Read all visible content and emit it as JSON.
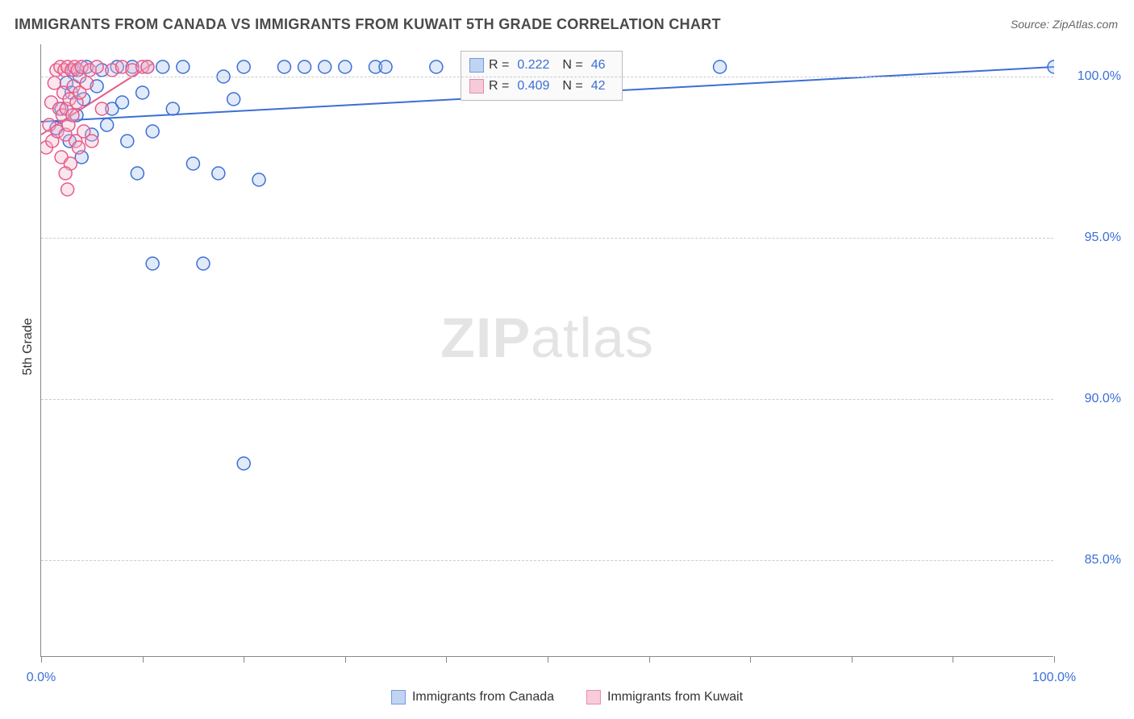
{
  "title": "IMMIGRANTS FROM CANADA VS IMMIGRANTS FROM KUWAIT 5TH GRADE CORRELATION CHART",
  "source": "Source: ZipAtlas.com",
  "y_axis_label": "5th Grade",
  "watermark_bold": "ZIP",
  "watermark_light": "atlas",
  "chart": {
    "type": "scatter",
    "xlim": [
      0,
      100
    ],
    "ylim": [
      82,
      101
    ],
    "x_ticks": [
      0,
      10,
      20,
      30,
      40,
      50,
      60,
      70,
      80,
      90,
      100
    ],
    "x_tick_labels": {
      "0": "0.0%",
      "100": "100.0%"
    },
    "y_ticks": [
      85,
      90,
      95,
      100
    ],
    "y_tick_labels": {
      "85": "85.0%",
      "90": "90.0%",
      "95": "95.0%",
      "100": "100.0%"
    },
    "grid_color": "#cccccc",
    "background_color": "#ffffff",
    "marker_radius": 8,
    "marker_stroke_width": 1.5,
    "marker_fill_opacity": 0.35,
    "line_width": 2
  },
  "series": [
    {
      "name": "Immigrants from Canada",
      "color_stroke": "#3b6fd6",
      "color_fill": "#a8c4ee",
      "R": "0.222",
      "N": "46",
      "trend": {
        "x1": 0,
        "y1": 98.6,
        "x2": 100,
        "y2": 100.3
      },
      "points": [
        [
          1.5,
          98.4
        ],
        [
          2.0,
          99.0
        ],
        [
          2.5,
          99.8
        ],
        [
          2.8,
          98.0
        ],
        [
          3.0,
          99.5
        ],
        [
          3.2,
          100.2
        ],
        [
          3.5,
          98.8
        ],
        [
          3.8,
          100.0
        ],
        [
          4.0,
          97.5
        ],
        [
          4.2,
          99.3
        ],
        [
          4.5,
          100.3
        ],
        [
          5.0,
          98.2
        ],
        [
          5.5,
          99.7
        ],
        [
          6.0,
          100.2
        ],
        [
          6.5,
          98.5
        ],
        [
          7.0,
          99.0
        ],
        [
          7.5,
          100.3
        ],
        [
          8.0,
          99.2
        ],
        [
          8.5,
          98.0
        ],
        [
          9.0,
          100.3
        ],
        [
          9.5,
          97.0
        ],
        [
          10.0,
          99.5
        ],
        [
          10.5,
          100.3
        ],
        [
          11.0,
          98.3
        ],
        [
          12.0,
          100.3
        ],
        [
          13.0,
          99.0
        ],
        [
          14.0,
          100.3
        ],
        [
          15.0,
          97.3
        ],
        [
          11.0,
          94.2
        ],
        [
          16.0,
          94.2
        ],
        [
          17.5,
          97.0
        ],
        [
          18.0,
          100.0
        ],
        [
          19.0,
          99.3
        ],
        [
          20.0,
          100.3
        ],
        [
          21.5,
          96.8
        ],
        [
          20.0,
          88.0
        ],
        [
          24.0,
          100.3
        ],
        [
          26.0,
          100.3
        ],
        [
          28.0,
          100.3
        ],
        [
          30.0,
          100.3
        ],
        [
          33.0,
          100.3
        ],
        [
          34.0,
          100.3
        ],
        [
          39.0,
          100.3
        ],
        [
          44.0,
          100.3
        ],
        [
          67.0,
          100.3
        ],
        [
          100.0,
          100.3
        ]
      ]
    },
    {
      "name": "Immigrants from Kuwait",
      "color_stroke": "#e65a8a",
      "color_fill": "#f4b8cc",
      "R": "0.409",
      "N": "42",
      "trend": {
        "x1": 0,
        "y1": 98.2,
        "x2": 11,
        "y2": 100.4
      },
      "points": [
        [
          0.5,
          97.8
        ],
        [
          0.8,
          98.5
        ],
        [
          1.0,
          99.2
        ],
        [
          1.1,
          98.0
        ],
        [
          1.3,
          99.8
        ],
        [
          1.5,
          100.2
        ],
        [
          1.6,
          98.3
        ],
        [
          1.8,
          99.0
        ],
        [
          1.9,
          100.3
        ],
        [
          2.0,
          97.5
        ],
        [
          2.1,
          98.8
        ],
        [
          2.2,
          99.5
        ],
        [
          2.3,
          100.2
        ],
        [
          2.4,
          98.2
        ],
        [
          2.5,
          99.0
        ],
        [
          2.6,
          100.3
        ],
        [
          2.7,
          98.5
        ],
        [
          2.8,
          99.3
        ],
        [
          2.9,
          97.3
        ],
        [
          3.0,
          100.2
        ],
        [
          3.1,
          98.8
        ],
        [
          3.2,
          99.7
        ],
        [
          3.3,
          100.3
        ],
        [
          3.4,
          98.0
        ],
        [
          3.5,
          99.2
        ],
        [
          3.6,
          100.2
        ],
        [
          3.7,
          97.8
        ],
        [
          3.8,
          99.5
        ],
        [
          4.0,
          100.3
        ],
        [
          4.2,
          98.3
        ],
        [
          4.5,
          99.8
        ],
        [
          4.8,
          100.2
        ],
        [
          5.0,
          98.0
        ],
        [
          5.5,
          100.3
        ],
        [
          6.0,
          99.0
        ],
        [
          7.0,
          100.2
        ],
        [
          8.0,
          100.3
        ],
        [
          9.0,
          100.2
        ],
        [
          10.0,
          100.3
        ],
        [
          10.5,
          100.3
        ],
        [
          2.6,
          96.5
        ],
        [
          2.4,
          97.0
        ]
      ]
    }
  ],
  "legend": {
    "r_label": "R =",
    "n_label": "N ="
  },
  "bottom_legend": [
    {
      "label": "Immigrants from Canada",
      "stroke": "#3b6fd6",
      "fill": "#a8c4ee"
    },
    {
      "label": "Immigrants from Kuwait",
      "stroke": "#e65a8a",
      "fill": "#f4b8cc"
    }
  ]
}
